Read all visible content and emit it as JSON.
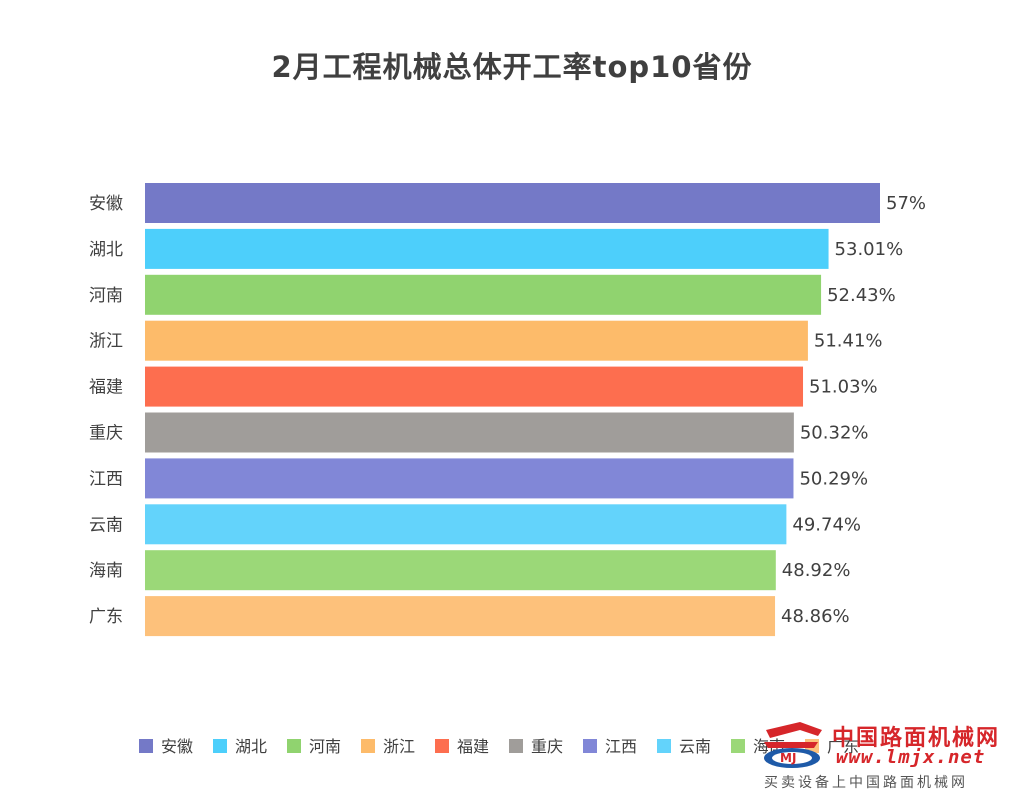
{
  "chart_data": {
    "type": "bar",
    "orientation": "horizontal",
    "title": "2月工程机械总体开工率top10省份",
    "categories": [
      "安徽",
      "湖北",
      "河南",
      "浙江",
      "福建",
      "重庆",
      "江西",
      "云南",
      "海南",
      "广东"
    ],
    "values": [
      57,
      53.01,
      52.43,
      51.41,
      51.03,
      50.32,
      50.29,
      49.74,
      48.92,
      48.86
    ],
    "value_labels": [
      "57%",
      "53.01%",
      "52.43%",
      "51.41%",
      "51.03%",
      "50.32%",
      "50.29%",
      "49.74%",
      "48.92%",
      "48.86%"
    ],
    "colors": [
      "#7479c7",
      "#4dcffb",
      "#90d36f",
      "#fdbb6a",
      "#fd6e4f",
      "#a09d9a",
      "#8187d7",
      "#63d3fb",
      "#9bd878",
      "#fdc17b"
    ],
    "legend": [
      "安徽",
      "湖北",
      "河南",
      "浙江",
      "福建",
      "重庆",
      "江西",
      "云南",
      "海南",
      "广东"
    ],
    "legend_position": "bottom",
    "xlim": [
      0,
      57
    ],
    "grid": false
  },
  "watermark": {
    "name": "中国路面机械网",
    "url": "www.lmjx.net",
    "slogan": "买卖设备上中国路面机械网"
  }
}
